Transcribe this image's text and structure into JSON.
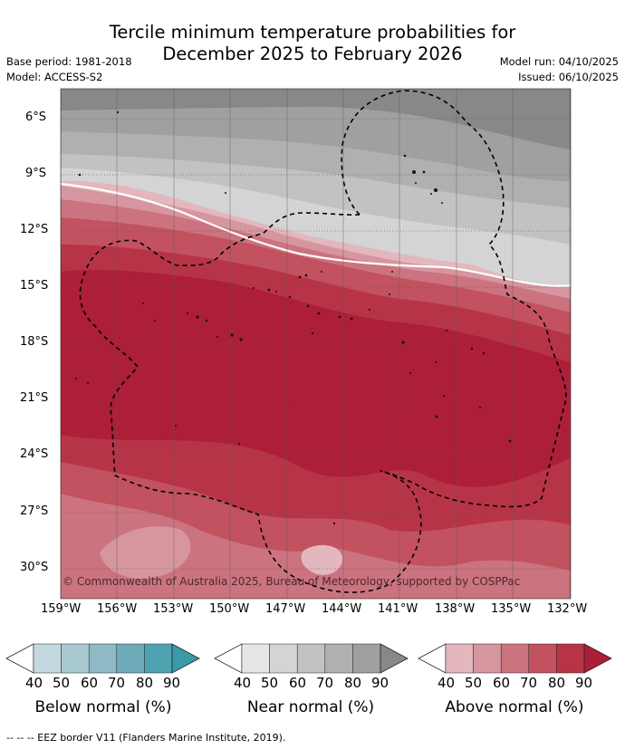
{
  "title_line1": "Tercile minimum temperature probabilities for",
  "title_line2": "December 2025 to February 2026",
  "meta": {
    "base_period": "Base period: 1981-2018",
    "model": "Model: ACCESS-S2",
    "model_run": "Model run: 04/10/2025",
    "issued": "Issued: 06/10/2025"
  },
  "map": {
    "copyright": "© Commonwealth of Australia 2025, Bureau of Meteorology, supported by COSPPac",
    "lat_labels": [
      "6°S",
      "9°S",
      "12°S",
      "15°S",
      "18°S",
      "21°S",
      "24°S",
      "27°S",
      "30°S"
    ],
    "lon_labels": [
      "159°W",
      "156°W",
      "153°W",
      "150°W",
      "147°W",
      "144°W",
      "141°W",
      "138°W",
      "135°W",
      "132°W"
    ],
    "lat_range": [
      -32,
      -4.5
    ],
    "lon_range": [
      -159,
      -132
    ]
  },
  "colorbars": [
    {
      "label": "Below normal (%)",
      "ticks": [
        "40",
        "50",
        "60",
        "70",
        "80",
        "90"
      ],
      "colors": [
        "#c3d9df",
        "#a9c9d1",
        "#8dbac5",
        "#6eabb8",
        "#4fa2b2"
      ],
      "over": "#3a9aaa"
    },
    {
      "label": "Near normal (%)",
      "ticks": [
        "40",
        "50",
        "60",
        "70",
        "80",
        "90"
      ],
      "colors": [
        "#e6e6e6",
        "#d4d4d4",
        "#c2c2c2",
        "#b0b0b0",
        "#a0a0a0"
      ],
      "over": "#888888"
    },
    {
      "label": "Above normal (%)",
      "ticks": [
        "40",
        "50",
        "60",
        "70",
        "80",
        "90"
      ],
      "colors": [
        "#e3b7bd",
        "#d6969f",
        "#cb737f",
        "#c2525f",
        "#b73446"
      ],
      "over": "#ad1e38"
    }
  ],
  "footnote": "--  --  -- EEZ border V11 (Flanders Marine Institute, 2019)."
}
